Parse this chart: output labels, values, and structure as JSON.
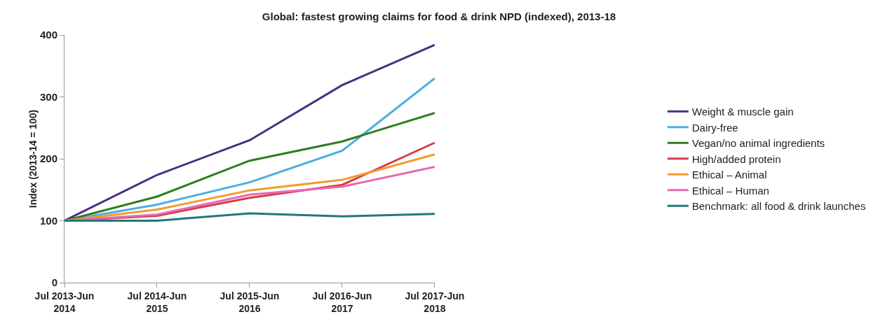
{
  "chart_data": {
    "type": "line",
    "title": "Global: fastest growing claims for food & drink NPD (indexed), 2013-18",
    "ylabel": "Index (2013-14 = 100)",
    "categories": [
      "Jul 2013-Jun 2014",
      "Jul 2014-Jun 2015",
      "Jul 2015-Jun 2016",
      "Jul 2016-Jun 2017",
      "Jul 2017-Jun 2018"
    ],
    "series": [
      {
        "name": "Weight & muscle gain",
        "color": "#4b2e83",
        "values": [
          100,
          174,
          230,
          319,
          384
        ]
      },
      {
        "name": "Dairy-free",
        "color": "#4aaee3",
        "values": [
          100,
          126,
          162,
          213,
          330
        ]
      },
      {
        "name": "Vegan/no animal ingredients",
        "color": "#2e7d1e",
        "values": [
          100,
          139,
          197,
          228,
          274
        ]
      },
      {
        "name": "High/added protein",
        "color": "#d63a4a",
        "values": [
          100,
          108,
          137,
          158,
          226
        ]
      },
      {
        "name": "Ethical – Animal",
        "color": "#f39a2c",
        "values": [
          100,
          118,
          149,
          166,
          207
        ]
      },
      {
        "name": "Ethical – Human",
        "color": "#e868b0",
        "values": [
          100,
          110,
          142,
          155,
          187
        ]
      },
      {
        "name": "Benchmark: all food & drink launches",
        "color": "#1f7a78",
        "values": [
          100,
          100,
          112,
          107,
          111
        ]
      }
    ],
    "ylim": [
      0,
      400
    ],
    "yticks": [
      0,
      100,
      200,
      300,
      400
    ],
    "grid": false,
    "legend": "right",
    "marker": "none",
    "line_style": "solid"
  }
}
